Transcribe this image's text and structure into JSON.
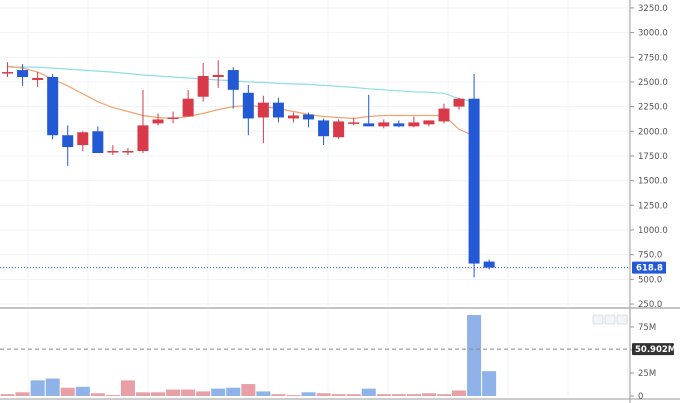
{
  "chart_data": [
    {
      "type": "candlestick",
      "name": "price",
      "y_ticks": [
        "3250.0",
        "3000.0",
        "2750.0",
        "2500.0",
        "2250.0",
        "2000.0",
        "1750.0",
        "1500.0",
        "1250.0",
        "1000.0",
        "750.0",
        "500.0",
        "250.0"
      ],
      "ylim": [
        230,
        3330
      ],
      "last_price_label": "618.8",
      "last_price": 618.8,
      "colors": {
        "up": "#d83a4a",
        "down": "#2359d4",
        "ma_long": "#8fdde6",
        "ma_short": "#f2a46f",
        "last_price_line": "#2359d4"
      },
      "candles": [
        {
          "o": 2600,
          "h": 2700,
          "l": 2550,
          "c": 2600
        },
        {
          "o": 2620,
          "h": 2680,
          "l": 2460,
          "c": 2550
        },
        {
          "o": 2520,
          "h": 2600,
          "l": 2450,
          "c": 2540
        },
        {
          "o": 2550,
          "h": 2580,
          "l": 1920,
          "c": 1960
        },
        {
          "o": 1960,
          "h": 2060,
          "l": 1650,
          "c": 1840
        },
        {
          "o": 1860,
          "h": 2000,
          "l": 1800,
          "c": 1990
        },
        {
          "o": 2000,
          "h": 2050,
          "l": 1780,
          "c": 1780
        },
        {
          "o": 1790,
          "h": 1860,
          "l": 1760,
          "c": 1800
        },
        {
          "o": 1790,
          "h": 1830,
          "l": 1760,
          "c": 1800
        },
        {
          "o": 1800,
          "h": 2420,
          "l": 1780,
          "c": 2060
        },
        {
          "o": 2080,
          "h": 2180,
          "l": 2060,
          "c": 2120
        },
        {
          "o": 2130,
          "h": 2200,
          "l": 2080,
          "c": 2140
        },
        {
          "o": 2150,
          "h": 2420,
          "l": 2150,
          "c": 2330
        },
        {
          "o": 2350,
          "h": 2690,
          "l": 2300,
          "c": 2560
        },
        {
          "o": 2550,
          "h": 2720,
          "l": 2440,
          "c": 2570
        },
        {
          "o": 2620,
          "h": 2650,
          "l": 2230,
          "c": 2420
        },
        {
          "o": 2390,
          "h": 2470,
          "l": 1960,
          "c": 2130
        },
        {
          "o": 2140,
          "h": 2360,
          "l": 1880,
          "c": 2290
        },
        {
          "o": 2290,
          "h": 2340,
          "l": 2090,
          "c": 2140
        },
        {
          "o": 2130,
          "h": 2190,
          "l": 2090,
          "c": 2160
        },
        {
          "o": 2170,
          "h": 2190,
          "l": 2040,
          "c": 2120
        },
        {
          "o": 2110,
          "h": 2130,
          "l": 1860,
          "c": 1950
        },
        {
          "o": 1940,
          "h": 2120,
          "l": 1920,
          "c": 2100
        },
        {
          "o": 2090,
          "h": 2140,
          "l": 2060,
          "c": 2090
        },
        {
          "o": 2080,
          "h": 2370,
          "l": 2060,
          "c": 2050
        },
        {
          "o": 2050,
          "h": 2120,
          "l": 2030,
          "c": 2090
        },
        {
          "o": 2080,
          "h": 2110,
          "l": 2040,
          "c": 2050
        },
        {
          "o": 2050,
          "h": 2150,
          "l": 2040,
          "c": 2090
        },
        {
          "o": 2070,
          "h": 2110,
          "l": 2050,
          "c": 2110
        },
        {
          "o": 2100,
          "h": 2280,
          "l": 2080,
          "c": 2230
        },
        {
          "o": 2250,
          "h": 2340,
          "l": 2220,
          "c": 2330
        },
        {
          "o": 2330,
          "h": 2580,
          "l": 520,
          "c": 660
        },
        {
          "o": 680,
          "h": 700,
          "l": 600,
          "c": 618.8
        }
      ],
      "ma_long": [
        2650,
        2650,
        2650,
        2640,
        2630,
        2620,
        2610,
        2600,
        2585,
        2570,
        2560,
        2550,
        2540,
        2530,
        2520,
        2510,
        2500,
        2495,
        2485,
        2480,
        2475,
        2465,
        2455,
        2445,
        2430,
        2420,
        2410,
        2400,
        2395,
        2385,
        2330,
        2300
      ],
      "ma_short": [
        2660,
        2640,
        2600,
        2530,
        2460,
        2380,
        2300,
        2240,
        2200,
        2160,
        2140,
        2130,
        2150,
        2180,
        2220,
        2250,
        2260,
        2250,
        2230,
        2200,
        2170,
        2150,
        2140,
        2130,
        2150,
        2160,
        2160,
        2160,
        2160,
        2160,
        2020,
        1950
      ]
    },
    {
      "type": "bar",
      "name": "volume",
      "y_ticks": [
        "75M",
        "50M",
        "25M",
        "0"
      ],
      "ylim": [
        0,
        88
      ],
      "reference_label": "50.902M",
      "reference_value": 50.902,
      "colors": {
        "up": "#e8a0a6",
        "down": "#8fb3e8",
        "reference": "#888888",
        "reference_tag": "#333333"
      },
      "values": [
        2,
        4,
        17,
        19,
        9,
        10,
        3,
        1,
        17,
        4,
        4,
        7,
        7,
        5,
        8,
        9,
        13,
        5,
        2,
        1,
        4,
        3,
        2,
        2,
        8,
        2,
        2,
        2,
        3,
        2,
        6,
        88,
        27
      ],
      "directions": [
        "up",
        "up",
        "down",
        "down",
        "up",
        "down",
        "up",
        "up",
        "up",
        "up",
        "up",
        "up",
        "up",
        "up",
        "down",
        "down",
        "up",
        "down",
        "up",
        "up",
        "down",
        "up",
        "up",
        "up",
        "down",
        "up",
        "up",
        "up",
        "up",
        "up",
        "up",
        "down",
        "down"
      ]
    }
  ]
}
